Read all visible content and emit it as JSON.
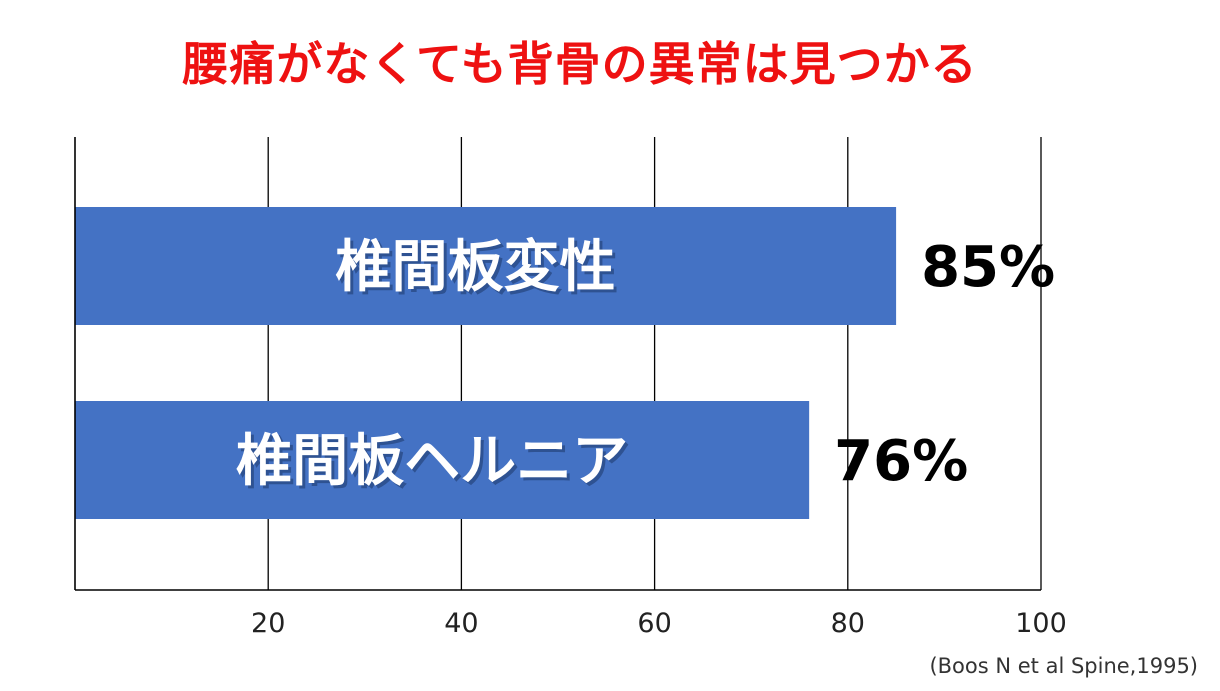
{
  "chart_data": {
    "type": "bar",
    "orientation": "horizontal",
    "title": "腰痛がなくても背骨の異常は見つかる",
    "categories": [
      "椎間板変性",
      "椎間板ヘルニア"
    ],
    "values": [
      85,
      76
    ],
    "value_labels": [
      "85%",
      "76%"
    ],
    "xlim": [
      0,
      100
    ],
    "xticks": [
      20,
      40,
      60,
      80,
      100
    ],
    "xlabel": "",
    "ylabel": "",
    "grid": true,
    "bar_color": "#4472c4",
    "title_color": "#ee1111"
  },
  "source": "(Boos N et al Spine,1995)"
}
